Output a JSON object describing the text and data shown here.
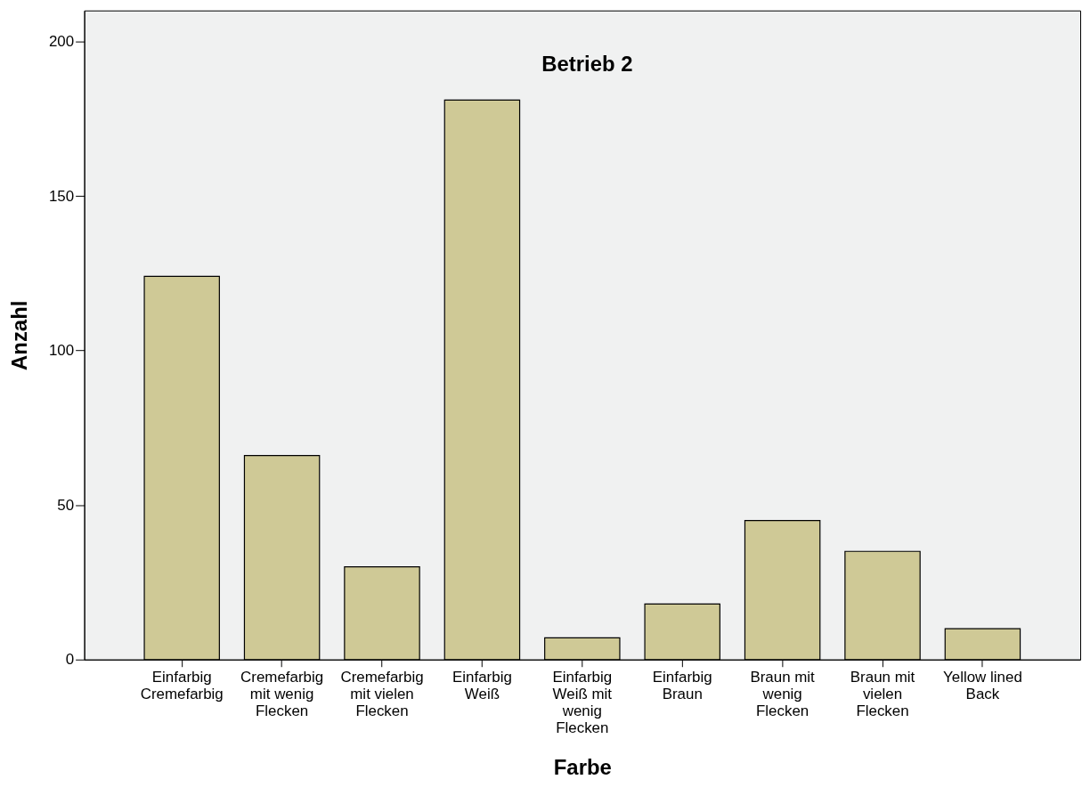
{
  "chart_data": {
    "type": "bar",
    "title": "Betrieb 2",
    "xlabel": "Farbe",
    "ylabel": "Anzahl",
    "categories": [
      "Einfarbig\nCremefarbig",
      "Cremefarbig\nmit wenig\nFlecken",
      "Cremefarbig\nmit vielen\nFlecken",
      "Einfarbig\nWeiß",
      "Einfarbig\nWeiß mit\nwenig\nFlecken",
      "Einfarbig\nBraun",
      "Braun mit\nwenig\nFlecken",
      "Braun mit\nvielen\nFlecken",
      "Yellow lined\nBack"
    ],
    "values": [
      124,
      66,
      30,
      181,
      7,
      18,
      45,
      35,
      10
    ],
    "color": "#cfc996",
    "ylim": [
      0,
      210
    ],
    "yticks": [
      0,
      50,
      100,
      150,
      200
    ],
    "grid": false
  }
}
